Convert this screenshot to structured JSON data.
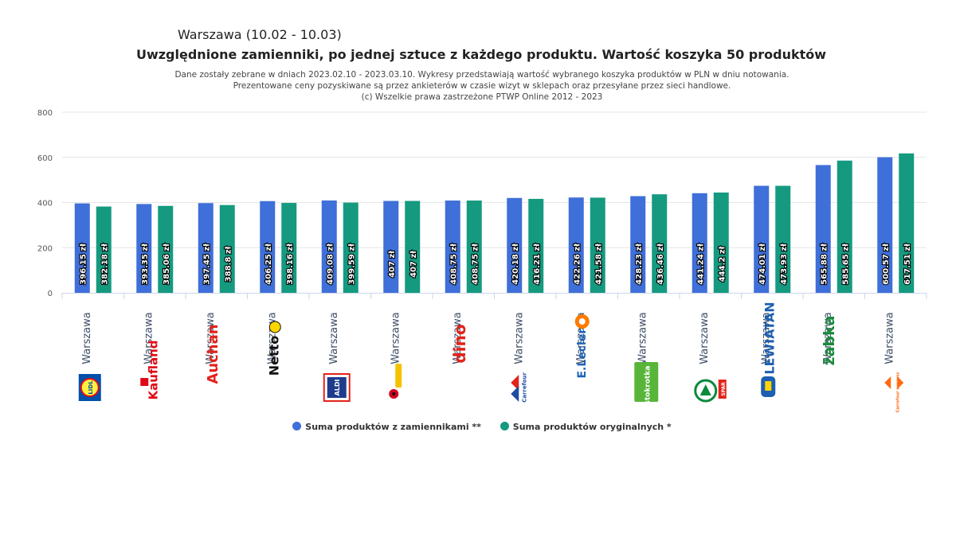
{
  "title": "Warszawa (10.02 - 10.03)",
  "subtitle": "Uwzględnione zamienniki, po jednej sztuce z każdego produktu. Wartość koszyka 50 produktów",
  "notes": [
    "Dane zostały zebrane w dniach 2023.02.10 - 2023.03.10. Wykresy przedstawiają wartość wybranego koszyka produktów w PLN w dniu notowania.",
    "Prezentowane ceny pozyskiwane są przez ankieterów w czasie wizyt w sklepach oraz przesyłane przez sieci handlowe.",
    "(c) Wszelkie prawa zastrzeżone PTWP Online 2012 - 2023"
  ],
  "colors": {
    "series1": "#3f6fd8",
    "series2": "#159a80"
  },
  "chart_data": {
    "type": "bar",
    "ylim": [
      0,
      800
    ],
    "yticks": [
      0,
      200,
      400,
      600,
      800
    ],
    "grid": true,
    "legend_position": "bottom-center",
    "categories": [
      {
        "city": "Warszawa",
        "logo": "Lidl",
        "logo_icon": "lidl-logo-icon"
      },
      {
        "city": "Warszawa",
        "logo": "Kaufland",
        "logo_icon": "kaufland-logo-icon"
      },
      {
        "city": "Warszawa",
        "logo": "Auchan",
        "logo_icon": "auchan-logo-icon"
      },
      {
        "city": "Warszawa",
        "logo": "Netto",
        "logo_icon": "netto-logo-icon"
      },
      {
        "city": "Warszawa",
        "logo": "ALDI",
        "logo_icon": "aldi-logo-icon"
      },
      {
        "city": "Warszawa",
        "logo": "Biedronka",
        "logo_icon": "biedronka-logo-icon"
      },
      {
        "city": "Warszawa",
        "logo": "dino",
        "logo_icon": "dino-logo-icon"
      },
      {
        "city": "Warszawa",
        "logo": "Carrefour",
        "logo_icon": "carrefour-logo-icon"
      },
      {
        "city": "Warszawa",
        "logo": "E.Leclerc",
        "logo_icon": "leclerc-logo-icon"
      },
      {
        "city": "Warszawa",
        "logo": "stokrotka",
        "logo_icon": "stokrotka-logo-icon"
      },
      {
        "city": "Warszawa",
        "logo": "SPAR",
        "logo_icon": "spar-logo-icon"
      },
      {
        "city": "Warszawa",
        "logo": "LEWIATAN",
        "logo_icon": "lewiatan-logo-icon"
      },
      {
        "city": "Warszawa",
        "logo": "żabka",
        "logo_icon": "zabka-logo-icon"
      },
      {
        "city": "Warszawa",
        "logo": "Carrefour express",
        "logo_icon": "carrefour-express-logo-icon"
      }
    ],
    "series": [
      {
        "name": "Suma produktów z zamiennikami **",
        "values": [
          396.15,
          393.35,
          397.45,
          406.25,
          409.08,
          407,
          408.75,
          420.18,
          422.26,
          428.23,
          441.24,
          474.01,
          565.88,
          600.57
        ],
        "labels": [
          "396.15 zł",
          "393.35 zł",
          "397.45 zł",
          "406.25 zł",
          "409.08 zł",
          "407 zł",
          "408.75 zł",
          "420.18 zł",
          "422.26 zł",
          "428.23 zł",
          "441.24 zł",
          "474.01 zł",
          "565.88 zł",
          "600.57 zł"
        ]
      },
      {
        "name": "Suma produktów oryginalnych *",
        "values": [
          382.18,
          385.06,
          388.8,
          398.16,
          399.59,
          407,
          408.75,
          416.21,
          421.58,
          436.46,
          444.2,
          473.93,
          585.65,
          617.51
        ],
        "labels": [
          "382.18 zł",
          "385.06 zł",
          "388.8 zł",
          "398.16 zł",
          "399.59 zł",
          "407 zł",
          "408.75 zł",
          "416.21 zł",
          "421.58 zł",
          "436.46 zł",
          "444.2 zł",
          "473.93 zł",
          "585.65 zł",
          "617.51 zł"
        ]
      }
    ]
  }
}
